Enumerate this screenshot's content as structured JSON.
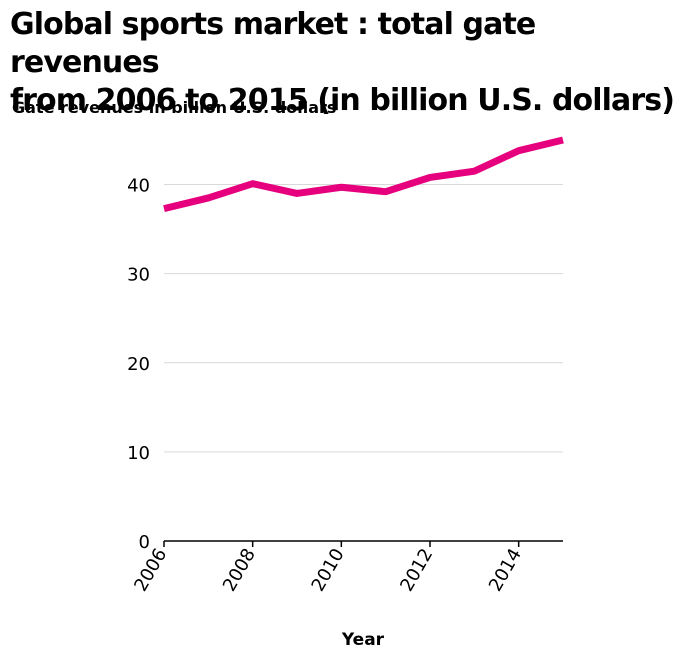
{
  "chart_data": {
    "type": "line",
    "title": "Global sports market : total gate revenues\nfrom 2006 to 2015 (in billion U.S. dollars)",
    "xlabel": "Year",
    "ylabel": "Gate revenues in billion U.S. dollars",
    "x": [
      2006,
      2007,
      2008,
      2009,
      2010,
      2011,
      2012,
      2013,
      2014,
      2015
    ],
    "series": [
      {
        "values": [
          37.3,
          38.5,
          40.1,
          39.0,
          39.7,
          39.2,
          40.8,
          41.5,
          43.8,
          45.0
        ]
      }
    ],
    "xlim": [
      2006,
      2015
    ],
    "ylim": [
      0,
      45
    ],
    "x_ticks": [
      "2006",
      "2008",
      "2010",
      "2012",
      "2014"
    ],
    "y_ticks": [
      "0",
      "10",
      "20",
      "30",
      "40"
    ],
    "grid": "horizontal",
    "line_color": "#e6007e"
  }
}
